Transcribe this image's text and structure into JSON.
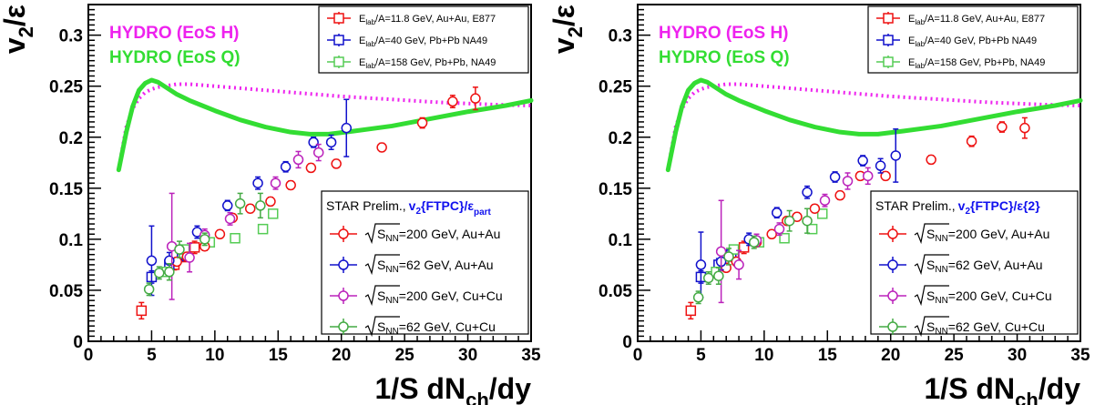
{
  "chart_data": [
    {
      "type": "scatter",
      "xlabel": "1/S dN",
      "xlabel_sub": "ch",
      "xlabel_tail": "/dy",
      "ylabel": "v",
      "ylabel_sub": "2",
      "ylabel_tail": "/ε",
      "xlim": [
        0,
        35
      ],
      "ylim": [
        0,
        0.33
      ],
      "xticks": [
        0,
        5,
        10,
        15,
        20,
        25,
        30,
        35
      ],
      "yticks": [
        0,
        0.05,
        0.1,
        0.15,
        0.2,
        0.25,
        0.3
      ],
      "ytick_labels": [
        "0",
        "0.05",
        "0.1",
        "0.15",
        "0.2",
        "0.25",
        "0.3"
      ],
      "hydro_labels": [
        {
          "text": "HYDRO (EoS H)",
          "color": "#ee22ee"
        },
        {
          "text": "HYDRO (EoS Q)",
          "color": "#33dd33"
        }
      ],
      "hydro_curves": [
        {
          "name": "HYDRO (EoS H)",
          "style": "dotted",
          "color": "#ee22ee",
          "x": [
            2.6,
            3.0,
            3.5,
            4.0,
            4.5,
            5.0,
            5.5,
            6.0,
            7.0,
            8.0,
            10,
            12,
            14,
            16,
            18,
            20,
            24,
            28,
            32,
            35
          ],
          "y": [
            0.183,
            0.21,
            0.228,
            0.238,
            0.244,
            0.247,
            0.249,
            0.25,
            0.252,
            0.252,
            0.25,
            0.248,
            0.246,
            0.244,
            0.242,
            0.24,
            0.237,
            0.234,
            0.232,
            0.231
          ]
        },
        {
          "name": "HYDRO (EoS Q)",
          "style": "solid",
          "color": "#33dd33",
          "x": [
            2.4,
            3.0,
            3.5,
            4.0,
            4.5,
            5.0,
            5.5,
            6.0,
            7.0,
            8.0,
            9.0,
            10,
            12,
            14,
            16,
            17.5,
            19,
            21,
            24,
            27,
            30,
            33,
            35
          ],
          "y": [
            0.168,
            0.205,
            0.23,
            0.246,
            0.253,
            0.256,
            0.254,
            0.25,
            0.242,
            0.236,
            0.231,
            0.226,
            0.217,
            0.21,
            0.205,
            0.203,
            0.203,
            0.206,
            0.211,
            0.218,
            0.225,
            0.231,
            0.236
          ]
        }
      ],
      "top_legend": [
        {
          "pre": "E",
          "sub": "lab",
          "post": "/A=11.8 GeV, Au+Au, E877",
          "color": "#ee1111"
        },
        {
          "pre": "E",
          "sub": "lab",
          "post": "/A=40 GeV, Pb+Pb NA49",
          "color": "#1111cc"
        },
        {
          "pre": "E",
          "sub": "lab",
          "post": "/A=158 GeV, Pb+Pb, NA49",
          "color": "#55cc55"
        }
      ],
      "star_title": "STAR Prelim.,",
      "star_method": "v",
      "star_method_sub": "2",
      "star_method_tail": "{FTPC}/ε",
      "star_method_tail_sub": "part",
      "star_legend": [
        {
          "s": "S",
          "sub": "NN",
          "text": "=200 GeV, Au+Au",
          "color": "#ee1111"
        },
        {
          "s": "S",
          "sub": "NN",
          "text": "=62 GeV, Au+Au",
          "color": "#1111cc"
        },
        {
          "s": "S",
          "sub": "NN",
          "text": "=200 GeV, Cu+Cu",
          "color": "#bb22bb"
        },
        {
          "s": "S",
          "sub": "NN",
          "text": "=62 GeV, Cu+Cu",
          "color": "#44aa44"
        }
      ],
      "series": [
        {
          "name": "E_lab/A=11.8 GeV, Au+Au, E877",
          "marker": "square",
          "color": "#ee1111",
          "x": [
            4.2,
            6.8,
            7.6,
            8.4
          ],
          "y": [
            0.03,
            0.075,
            0.083,
            0.092
          ],
          "err": [
            0.008,
            0.005,
            0.005,
            0.006
          ]
        },
        {
          "name": "E_lab/A=40 GeV, Pb+Pb NA49",
          "marker": "square",
          "color": "#1111cc",
          "x": [
            5.0,
            6.4,
            7.4
          ],
          "y": [
            0.063,
            0.075,
            0.085
          ],
          "err": [
            0.006,
            0.006,
            0.006
          ]
        },
        {
          "name": "E_lab/A=158 GeV, Pb+Pb, NA49",
          "marker": "square",
          "color": "#55cc55",
          "x": [
            6.2,
            7.6,
            9.6,
            11.6,
            14.6,
            13.8
          ],
          "y": [
            0.068,
            0.09,
            0.097,
            0.101,
            0.125,
            0.11
          ],
          "err": [
            0.004,
            0.004,
            0.004,
            0.004,
            0.004,
            0.004
          ]
        },
        {
          "name": "sNN=200 GeV, Au+Au",
          "marker": "circle",
          "color": "#ee1111",
          "x": [
            7.0,
            7.8,
            9.2,
            10.4,
            11.4,
            12.8,
            14.4,
            16.0,
            17.6,
            19.6,
            23.2,
            26.4,
            28.8,
            30.6
          ],
          "y": [
            0.078,
            0.083,
            0.093,
            0.105,
            0.121,
            0.13,
            0.137,
            0.153,
            0.17,
            0.174,
            0.19,
            0.214,
            0.235,
            0.238
          ],
          "err": [
            0.004,
            0.004,
            0.004,
            0.004,
            0.004,
            0.004,
            0.004,
            0.004,
            0.004,
            0.004,
            0.004,
            0.005,
            0.006,
            0.011
          ]
        },
        {
          "name": "sNN=62 GeV, Au+Au",
          "marker": "circle",
          "color": "#1111cc",
          "x": [
            5.0,
            6.4,
            8.6,
            11.0,
            13.4,
            15.6,
            17.8,
            19.2,
            20.4
          ],
          "y": [
            0.079,
            0.079,
            0.107,
            0.133,
            0.155,
            0.171,
            0.195,
            0.195,
            0.209
          ],
          "err": [
            0.034,
            0.008,
            0.006,
            0.005,
            0.006,
            0.005,
            0.005,
            0.007,
            0.028
          ]
        },
        {
          "name": "sNN=200 GeV, Cu+Cu",
          "marker": "circle",
          "color": "#bb22bb",
          "x": [
            6.6,
            8.0,
            9.2,
            11.2,
            14.8,
            16.6,
            18.2
          ],
          "y": [
            0.093,
            0.082,
            0.104,
            0.12,
            0.155,
            0.178,
            0.185
          ],
          "err": [
            0.052,
            0.014,
            0.006,
            0.006,
            0.006,
            0.008,
            0.008
          ]
        },
        {
          "name": "sNN=62 GeV, Cu+Cu",
          "marker": "circle",
          "color": "#44aa44",
          "x": [
            4.8,
            5.6,
            6.4,
            7.2,
            9.2,
            12.0,
            13.6
          ],
          "y": [
            0.051,
            0.067,
            0.068,
            0.09,
            0.1,
            0.135,
            0.133
          ],
          "err": [
            0.006,
            0.006,
            0.008,
            0.008,
            0.006,
            0.01,
            0.012
          ]
        }
      ]
    },
    {
      "type": "scatter",
      "xlabel": "1/S dN",
      "xlabel_sub": "ch",
      "xlabel_tail": "/dy",
      "ylabel": "v",
      "ylabel_sub": "2",
      "ylabel_tail": "/ε",
      "xlim": [
        0,
        35
      ],
      "ylim": [
        0,
        0.33
      ],
      "xticks": [
        0,
        5,
        10,
        15,
        20,
        25,
        30,
        35
      ],
      "yticks": [
        0,
        0.05,
        0.1,
        0.15,
        0.2,
        0.25,
        0.3
      ],
      "ytick_labels": [
        "0",
        "0.05",
        "0.1",
        "0.15",
        "0.2",
        "0.25",
        "0.3"
      ],
      "hydro_labels": [
        {
          "text": "HYDRO (EoS H)",
          "color": "#ee22ee"
        },
        {
          "text": "HYDRO (EoS Q)",
          "color": "#33dd33"
        }
      ],
      "hydro_curves": [
        {
          "name": "HYDRO (EoS H)",
          "style": "dotted",
          "color": "#ee22ee",
          "x": [
            2.6,
            3.0,
            3.5,
            4.0,
            4.5,
            5.0,
            5.5,
            6.0,
            7.0,
            8.0,
            10,
            12,
            14,
            16,
            18,
            20,
            24,
            28,
            32,
            35
          ],
          "y": [
            0.183,
            0.21,
            0.228,
            0.238,
            0.244,
            0.247,
            0.249,
            0.25,
            0.252,
            0.252,
            0.25,
            0.248,
            0.246,
            0.244,
            0.242,
            0.24,
            0.237,
            0.234,
            0.232,
            0.231
          ]
        },
        {
          "name": "HYDRO (EoS Q)",
          "style": "solid",
          "color": "#33dd33",
          "x": [
            2.4,
            3.0,
            3.5,
            4.0,
            4.5,
            5.0,
            5.5,
            6.0,
            7.0,
            8.0,
            9.0,
            10,
            12,
            14,
            16,
            17.5,
            19,
            21,
            24,
            27,
            30,
            33,
            35
          ],
          "y": [
            0.168,
            0.205,
            0.23,
            0.246,
            0.253,
            0.256,
            0.254,
            0.25,
            0.242,
            0.236,
            0.231,
            0.226,
            0.217,
            0.21,
            0.205,
            0.203,
            0.203,
            0.206,
            0.211,
            0.218,
            0.225,
            0.231,
            0.236
          ]
        }
      ],
      "top_legend": [
        {
          "pre": "E",
          "sub": "lab",
          "post": "/A=11.8 GeV, Au+Au, E877",
          "color": "#ee1111"
        },
        {
          "pre": "E",
          "sub": "lab",
          "post": "/A=40 GeV, Pb+Pb NA49",
          "color": "#1111cc"
        },
        {
          "pre": "E",
          "sub": "lab",
          "post": "/A=158 GeV, Pb+Pb, NA49",
          "color": "#55cc55"
        }
      ],
      "star_title": "STAR Prelim.,",
      "star_method": "v",
      "star_method_sub": "2",
      "star_method_tail": "{FTPC}/ε{2}",
      "star_method_tail_sub": "",
      "star_legend": [
        {
          "s": "S",
          "sub": "NN",
          "text": "=200 GeV, Au+Au",
          "color": "#ee1111"
        },
        {
          "s": "S",
          "sub": "NN",
          "text": "=62 GeV, Au+Au",
          "color": "#1111cc"
        },
        {
          "s": "S",
          "sub": "NN",
          "text": "=200 GeV, Cu+Cu",
          "color": "#bb22bb"
        },
        {
          "s": "S",
          "sub": "NN",
          "text": "=62 GeV, Cu+Cu",
          "color": "#44aa44"
        }
      ],
      "series": [
        {
          "name": "E_lab/A=11.8 GeV, Au+Au, E877",
          "marker": "square",
          "color": "#ee1111",
          "x": [
            4.2,
            6.8,
            7.6,
            8.4
          ],
          "y": [
            0.03,
            0.075,
            0.083,
            0.092
          ],
          "err": [
            0.008,
            0.005,
            0.005,
            0.006
          ]
        },
        {
          "name": "E_lab/A=40 GeV, Pb+Pb NA49",
          "marker": "square",
          "color": "#1111cc",
          "x": [
            5.0,
            6.4,
            7.4
          ],
          "y": [
            0.063,
            0.075,
            0.085
          ],
          "err": [
            0.006,
            0.006,
            0.006
          ]
        },
        {
          "name": "E_lab/A=158 GeV, Pb+Pb, NA49",
          "marker": "square",
          "color": "#55cc55",
          "x": [
            6.2,
            7.6,
            9.6,
            11.6,
            14.6,
            13.8
          ],
          "y": [
            0.068,
            0.09,
            0.097,
            0.101,
            0.125,
            0.11
          ],
          "err": [
            0.004,
            0.004,
            0.004,
            0.004,
            0.004,
            0.004
          ]
        },
        {
          "name": "sNN=200 GeV, Au+Au",
          "marker": "circle",
          "color": "#ee1111",
          "x": [
            7.0,
            7.8,
            9.4,
            10.6,
            11.8,
            12.6,
            14.0,
            16.0,
            17.6,
            19.6,
            23.2,
            26.4,
            28.8,
            30.6
          ],
          "y": [
            0.072,
            0.078,
            0.097,
            0.105,
            0.118,
            0.122,
            0.13,
            0.143,
            0.162,
            0.162,
            0.178,
            0.196,
            0.21,
            0.209
          ],
          "err": [
            0.004,
            0.004,
            0.004,
            0.004,
            0.004,
            0.004,
            0.004,
            0.004,
            0.004,
            0.004,
            0.004,
            0.005,
            0.005,
            0.01
          ]
        },
        {
          "name": "sNN=62 GeV, Au+Au",
          "marker": "circle",
          "color": "#1111cc",
          "x": [
            5.0,
            6.6,
            8.8,
            11.0,
            13.4,
            15.6,
            17.8,
            19.2,
            20.4
          ],
          "y": [
            0.075,
            0.078,
            0.1,
            0.126,
            0.146,
            0.161,
            0.177,
            0.172,
            0.182
          ],
          "err": [
            0.032,
            0.008,
            0.006,
            0.005,
            0.006,
            0.005,
            0.005,
            0.007,
            0.026
          ]
        },
        {
          "name": "sNN=200 GeV, Cu+Cu",
          "marker": "circle",
          "color": "#bb22bb",
          "x": [
            6.6,
            8.0,
            9.4,
            11.2,
            14.8,
            16.6,
            18.2
          ],
          "y": [
            0.088,
            0.075,
            0.099,
            0.11,
            0.138,
            0.157,
            0.162
          ],
          "err": [
            0.05,
            0.014,
            0.006,
            0.006,
            0.006,
            0.008,
            0.008
          ]
        },
        {
          "name": "sNN=62 GeV, Cu+Cu",
          "marker": "circle",
          "color": "#44aa44",
          "x": [
            4.8,
            5.6,
            6.4,
            7.2,
            9.2,
            12.0,
            13.4
          ],
          "y": [
            0.043,
            0.062,
            0.064,
            0.083,
            0.097,
            0.118,
            0.118
          ],
          "err": [
            0.006,
            0.006,
            0.008,
            0.008,
            0.006,
            0.01,
            0.012
          ]
        }
      ]
    }
  ]
}
